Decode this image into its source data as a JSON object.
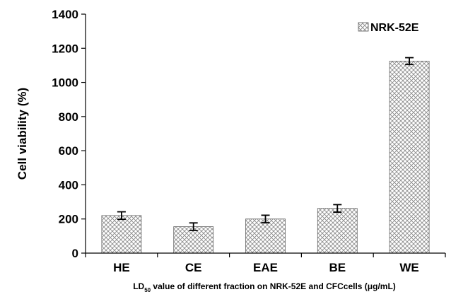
{
  "chart_data": {
    "type": "bar",
    "categories": [
      "HE",
      "CE",
      "EAE",
      "BE",
      "WE"
    ],
    "series": [
      {
        "name": "NRK-52E",
        "values": [
          220,
          155,
          200,
          262,
          1125
        ],
        "errors": [
          22,
          22,
          22,
          22,
          20
        ]
      }
    ],
    "ylabel": "Cell viability (%)",
    "xlabel": {
      "prefix": "LD",
      "subscript": "50",
      "suffix": " value of different fraction on NRK-52E and CFCcells (μg/mL)"
    },
    "ylim": [
      0,
      1400
    ],
    "yticks": [
      0,
      200,
      400,
      600,
      800,
      1000,
      1200,
      1400
    ],
    "legend_position": "top-right",
    "bar_fill": "crosshatch pattern",
    "grid": false
  }
}
